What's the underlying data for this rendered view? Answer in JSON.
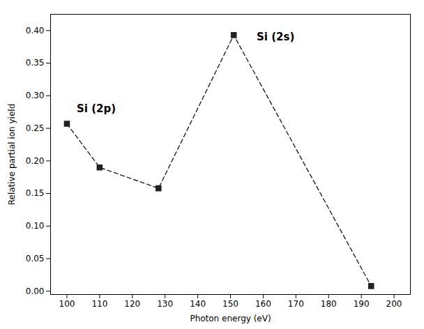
{
  "chart_data": {
    "type": "line",
    "x": [
      100,
      110,
      128,
      151,
      193
    ],
    "values": [
      0.257,
      0.19,
      0.158,
      0.393,
      0.008
    ],
    "xlabel": "Photon energy (eV)",
    "ylabel": "Relative partial ion yield",
    "xlim": [
      95,
      205
    ],
    "ylim": [
      -0.005,
      0.425
    ],
    "xticks": [
      100,
      110,
      120,
      130,
      140,
      150,
      160,
      170,
      180,
      190,
      200
    ],
    "yticks": [
      {
        "value": 0.0,
        "label": "0.00"
      },
      {
        "value": 0.05,
        "label": "0.05"
      },
      {
        "value": 0.1,
        "label": "0.10"
      },
      {
        "value": 0.15,
        "label": "0.15"
      },
      {
        "value": 0.2,
        "label": "0.20"
      },
      {
        "value": 0.25,
        "label": "0.25"
      },
      {
        "value": 0.3,
        "label": "0.30"
      },
      {
        "value": 0.35,
        "label": "0.35"
      },
      {
        "value": 0.4,
        "label": "0.40"
      }
    ],
    "annotations": [
      {
        "text": "Si (2p)",
        "x": 103,
        "y": 0.275
      },
      {
        "text": "Si (2s)",
        "x": 158,
        "y": 0.39
      }
    ],
    "color": "#222222",
    "marker": "square",
    "line_style": "dashed",
    "grid": false
  }
}
